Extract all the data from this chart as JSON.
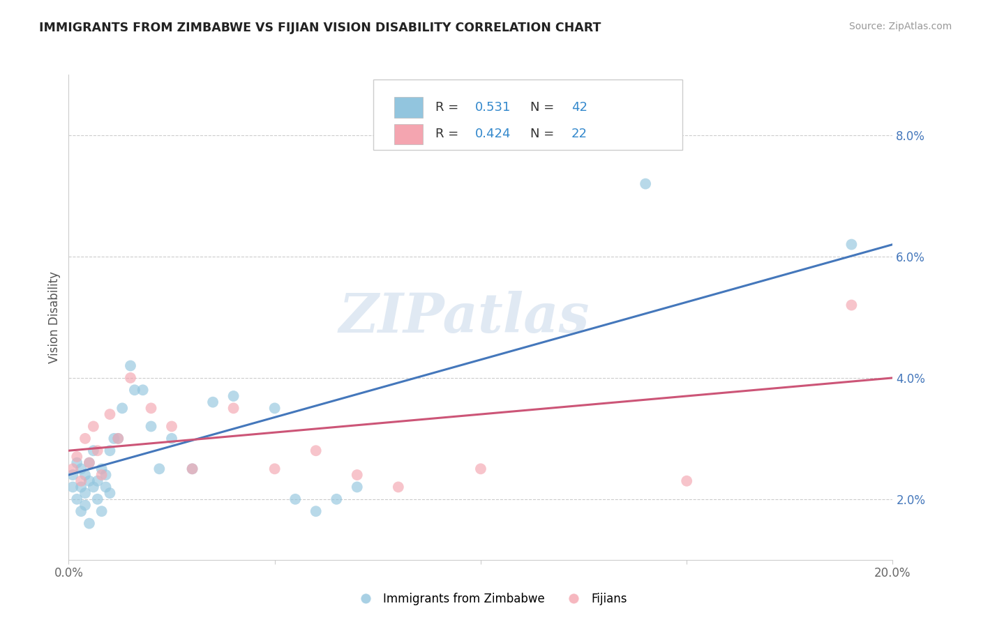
{
  "title": "IMMIGRANTS FROM ZIMBABWE VS FIJIAN VISION DISABILITY CORRELATION CHART",
  "source": "Source: ZipAtlas.com",
  "ylabel": "Vision Disability",
  "xlim": [
    0.0,
    0.2
  ],
  "ylim": [
    0.01,
    0.09
  ],
  "xticks": [
    0.0,
    0.05,
    0.1,
    0.15,
    0.2
  ],
  "xtick_labels": [
    "0.0%",
    "",
    "",
    "",
    "20.0%"
  ],
  "ytick_labels_right": [
    "2.0%",
    "4.0%",
    "6.0%",
    "8.0%"
  ],
  "yticks_right": [
    0.02,
    0.04,
    0.06,
    0.08
  ],
  "blue_R": "0.531",
  "blue_N": "42",
  "pink_R": "0.424",
  "pink_N": "22",
  "blue_color": "#92c5de",
  "pink_color": "#f4a5b0",
  "blue_line_color": "#4477bb",
  "pink_line_color": "#cc5577",
  "watermark": "ZIPatlas",
  "legend_label_blue": "Immigrants from Zimbabwe",
  "legend_label_pink": "Fijians",
  "blue_scatter_x": [
    0.001,
    0.001,
    0.002,
    0.002,
    0.003,
    0.003,
    0.003,
    0.004,
    0.004,
    0.004,
    0.005,
    0.005,
    0.005,
    0.006,
    0.006,
    0.007,
    0.007,
    0.008,
    0.008,
    0.009,
    0.009,
    0.01,
    0.01,
    0.011,
    0.012,
    0.013,
    0.015,
    0.016,
    0.018,
    0.02,
    0.022,
    0.025,
    0.03,
    0.035,
    0.04,
    0.05,
    0.055,
    0.06,
    0.065,
    0.07,
    0.14,
    0.19
  ],
  "blue_scatter_y": [
    0.024,
    0.022,
    0.026,
    0.02,
    0.022,
    0.025,
    0.018,
    0.021,
    0.024,
    0.019,
    0.023,
    0.026,
    0.016,
    0.022,
    0.028,
    0.023,
    0.02,
    0.025,
    0.018,
    0.024,
    0.022,
    0.028,
    0.021,
    0.03,
    0.03,
    0.035,
    0.042,
    0.038,
    0.038,
    0.032,
    0.025,
    0.03,
    0.025,
    0.036,
    0.037,
    0.035,
    0.02,
    0.018,
    0.02,
    0.022,
    0.072,
    0.062
  ],
  "pink_scatter_x": [
    0.001,
    0.002,
    0.003,
    0.004,
    0.005,
    0.006,
    0.007,
    0.008,
    0.01,
    0.012,
    0.015,
    0.02,
    0.025,
    0.03,
    0.04,
    0.05,
    0.06,
    0.07,
    0.08,
    0.1,
    0.15,
    0.19
  ],
  "pink_scatter_y": [
    0.025,
    0.027,
    0.023,
    0.03,
    0.026,
    0.032,
    0.028,
    0.024,
    0.034,
    0.03,
    0.04,
    0.035,
    0.032,
    0.025,
    0.035,
    0.025,
    0.028,
    0.024,
    0.022,
    0.025,
    0.023,
    0.052
  ],
  "blue_line_x": [
    0.0,
    0.2
  ],
  "blue_line_y": [
    0.024,
    0.062
  ],
  "pink_line_x": [
    0.0,
    0.2
  ],
  "pink_line_y": [
    0.028,
    0.04
  ]
}
